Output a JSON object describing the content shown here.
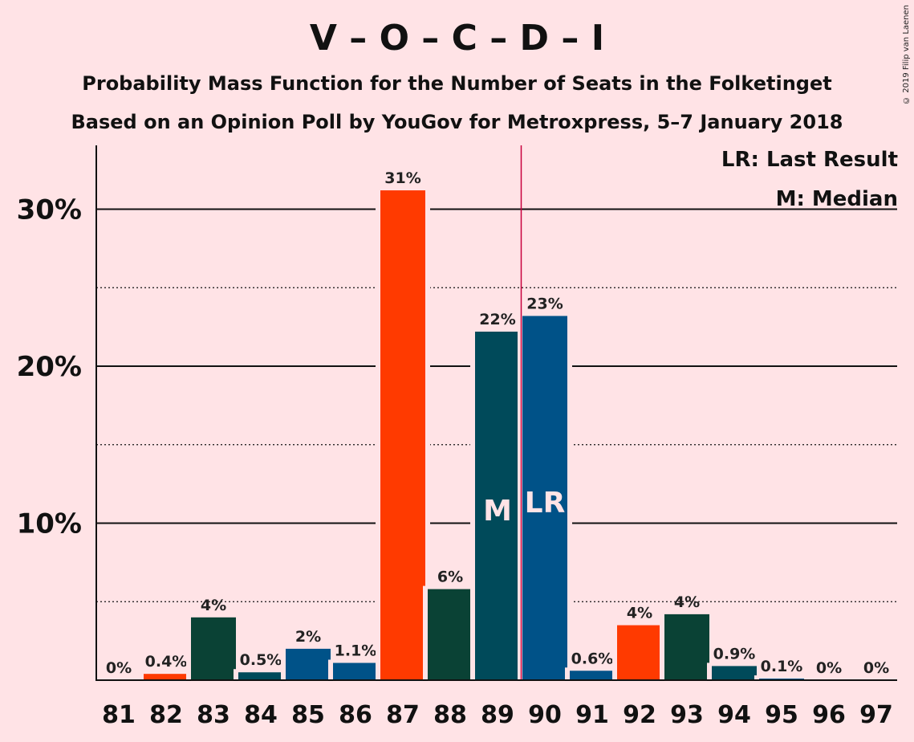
{
  "header": {
    "title": "V – O – C – D – I",
    "subtitle1": "Probability Mass Function for the Number of Seats in the Folketinget",
    "subtitle2": "Based on an Opinion Poll by YouGov for Metroxpress, 5–7 January 2018",
    "copyright": "© 2019 Filip van Laenen"
  },
  "legend": {
    "last_result": "LR: Last Result",
    "median": "M: Median"
  },
  "chart_data": {
    "type": "bar",
    "categories": [
      81,
      82,
      83,
      84,
      85,
      86,
      87,
      88,
      89,
      90,
      91,
      92,
      93,
      94,
      95,
      96,
      97
    ],
    "values": [
      0,
      0.4,
      4.0,
      0.5,
      2.0,
      1.1,
      31.2,
      5.8,
      22.2,
      23.2,
      0.6,
      3.5,
      4.2,
      0.9,
      0.1,
      0,
      0
    ],
    "labels": [
      "0%",
      "0.4%",
      "4%",
      "0.5%",
      "2%",
      "1.1%",
      "31%",
      "6%",
      "22%",
      "23%",
      "0.6%",
      "4%",
      "4%",
      "0.9%",
      "0.1%",
      "0%",
      "0%"
    ],
    "bar_colors": [
      "#ff3a00",
      "#ff3a00",
      "#0a4235",
      "#004a5a",
      "#005288",
      "#005288",
      "#ff3a00",
      "#0a4235",
      "#004a5a",
      "#005288",
      "#005288",
      "#ff3a00",
      "#0a4235",
      "#004a5a",
      "#005288",
      "#005288",
      "#ff3a00"
    ],
    "y_ticks": [
      10,
      20,
      30
    ],
    "y_tick_labels": [
      "10%",
      "20%",
      "30%"
    ],
    "ylim": [
      0,
      34
    ],
    "median": {
      "seat": 89,
      "label": "M"
    },
    "last_result": {
      "seat": 90,
      "label": "LR"
    },
    "majority_line_after": 89,
    "majority_color": "#c8003c"
  }
}
